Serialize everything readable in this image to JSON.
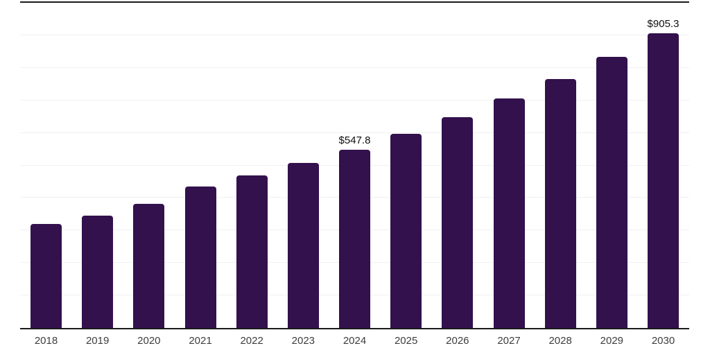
{
  "chart_data": {
    "type": "bar",
    "title": "",
    "xlabel": "",
    "ylabel": "",
    "categories": [
      "2018",
      "2019",
      "2020",
      "2021",
      "2022",
      "2023",
      "2024",
      "2025",
      "2026",
      "2027",
      "2028",
      "2029",
      "2030"
    ],
    "values": [
      319,
      345,
      382,
      434,
      469,
      507,
      547.8,
      596,
      648,
      706,
      766,
      834,
      905.3
    ],
    "data_labels": [
      null,
      null,
      null,
      null,
      null,
      null,
      "$547.8",
      null,
      null,
      null,
      null,
      null,
      "$905.3"
    ],
    "ylim": [
      0,
      1000
    ],
    "gridline_step": 100,
    "grid": "horizontal",
    "legend_position": "none",
    "colors": {
      "bar": "#32114d",
      "gridline": "#f0f0f0",
      "axis": "#1a1a1a",
      "tick_label": "#3d3d3d",
      "value_label": "#0f0f0f",
      "background": "#ffffff"
    }
  }
}
